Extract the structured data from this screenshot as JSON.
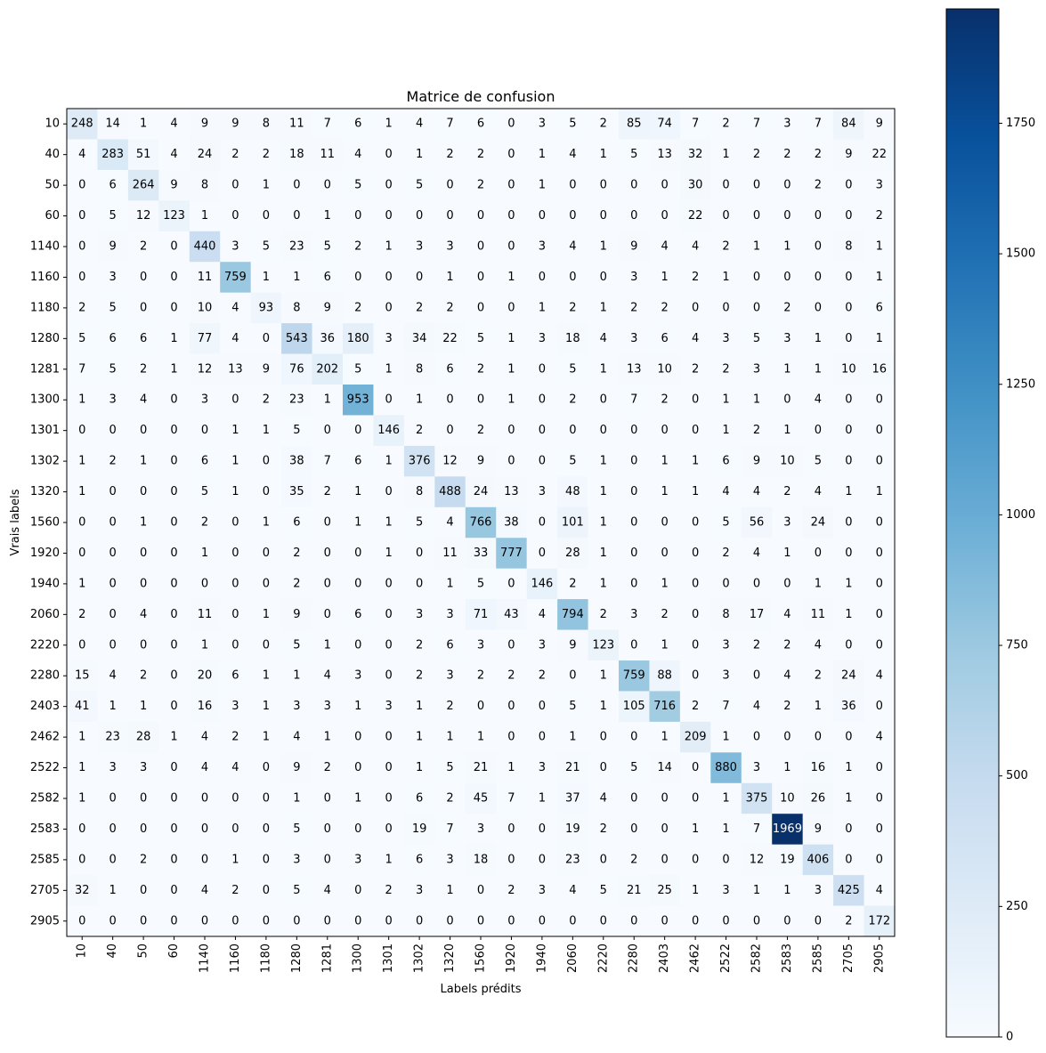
{
  "chart_data": {
    "type": "heatmap",
    "title": "Matrice de confusion",
    "xlabel": "Labels prédits",
    "ylabel": "Vrais labels",
    "labels": [
      "10",
      "40",
      "50",
      "60",
      "1140",
      "1160",
      "1180",
      "1280",
      "1281",
      "1300",
      "1301",
      "1302",
      "1320",
      "1560",
      "1920",
      "1940",
      "2060",
      "2220",
      "2280",
      "2403",
      "2462",
      "2522",
      "2582",
      "2583",
      "2585",
      "2705",
      "2905"
    ],
    "matrix": [
      [
        248,
        14,
        1,
        4,
        9,
        9,
        8,
        11,
        7,
        6,
        1,
        4,
        7,
        6,
        0,
        3,
        5,
        2,
        85,
        74,
        7,
        2,
        7,
        3,
        7,
        84,
        9
      ],
      [
        4,
        283,
        51,
        4,
        24,
        2,
        2,
        18,
        11,
        4,
        0,
        1,
        2,
        2,
        0,
        1,
        4,
        1,
        5,
        13,
        32,
        1,
        2,
        2,
        2,
        9,
        22
      ],
      [
        0,
        6,
        264,
        9,
        8,
        0,
        1,
        0,
        0,
        5,
        0,
        5,
        0,
        2,
        0,
        1,
        0,
        0,
        0,
        0,
        30,
        0,
        0,
        0,
        2,
        0,
        3
      ],
      [
        0,
        5,
        12,
        123,
        1,
        0,
        0,
        0,
        1,
        0,
        0,
        0,
        0,
        0,
        0,
        0,
        0,
        0,
        0,
        0,
        22,
        0,
        0,
        0,
        0,
        0,
        2
      ],
      [
        0,
        9,
        2,
        0,
        440,
        3,
        5,
        23,
        5,
        2,
        1,
        3,
        3,
        0,
        0,
        3,
        4,
        1,
        9,
        4,
        4,
        2,
        1,
        1,
        0,
        8,
        1
      ],
      [
        0,
        3,
        0,
        0,
        11,
        759,
        1,
        1,
        6,
        0,
        0,
        0,
        1,
        0,
        1,
        0,
        0,
        0,
        3,
        1,
        2,
        1,
        0,
        0,
        0,
        0,
        1
      ],
      [
        2,
        5,
        0,
        0,
        10,
        4,
        93,
        8,
        9,
        2,
        0,
        2,
        2,
        0,
        0,
        1,
        2,
        1,
        2,
        2,
        0,
        0,
        0,
        2,
        0,
        0,
        6
      ],
      [
        5,
        6,
        6,
        1,
        77,
        4,
        0,
        543,
        36,
        180,
        3,
        34,
        22,
        5,
        1,
        3,
        18,
        4,
        3,
        6,
        4,
        3,
        5,
        3,
        1,
        0,
        1
      ],
      [
        7,
        5,
        2,
        1,
        12,
        13,
        9,
        76,
        202,
        5,
        1,
        8,
        6,
        2,
        1,
        0,
        5,
        1,
        13,
        10,
        2,
        2,
        3,
        1,
        1,
        10,
        16
      ],
      [
        1,
        3,
        4,
        0,
        3,
        0,
        2,
        23,
        1,
        953,
        0,
        1,
        0,
        0,
        1,
        0,
        2,
        0,
        7,
        2,
        0,
        1,
        1,
        0,
        4,
        0,
        0
      ],
      [
        0,
        0,
        0,
        0,
        0,
        1,
        1,
        5,
        0,
        0,
        146,
        2,
        0,
        2,
        0,
        0,
        0,
        0,
        0,
        0,
        0,
        1,
        2,
        1,
        0,
        0,
        0
      ],
      [
        1,
        2,
        1,
        0,
        6,
        1,
        0,
        38,
        7,
        6,
        1,
        376,
        12,
        9,
        0,
        0,
        5,
        1,
        0,
        1,
        1,
        6,
        9,
        10,
        5,
        0,
        0
      ],
      [
        1,
        0,
        0,
        0,
        5,
        1,
        0,
        35,
        2,
        1,
        0,
        8,
        488,
        24,
        13,
        3,
        48,
        1,
        0,
        1,
        1,
        4,
        4,
        2,
        4,
        1,
        1
      ],
      [
        0,
        0,
        1,
        0,
        2,
        0,
        1,
        6,
        0,
        1,
        1,
        5,
        4,
        766,
        38,
        0,
        101,
        1,
        0,
        0,
        0,
        5,
        56,
        3,
        24,
        0,
        0
      ],
      [
        0,
        0,
        0,
        0,
        1,
        0,
        0,
        2,
        0,
        0,
        1,
        0,
        11,
        33,
        777,
        0,
        28,
        1,
        0,
        0,
        0,
        2,
        4,
        1,
        0,
        0,
        0
      ],
      [
        1,
        0,
        0,
        0,
        0,
        0,
        0,
        2,
        0,
        0,
        0,
        0,
        1,
        5,
        0,
        146,
        2,
        1,
        0,
        1,
        0,
        0,
        0,
        0,
        1,
        1,
        0
      ],
      [
        2,
        0,
        4,
        0,
        11,
        0,
        1,
        9,
        0,
        6,
        0,
        3,
        3,
        71,
        43,
        4,
        794,
        2,
        3,
        2,
        0,
        8,
        17,
        4,
        11,
        1,
        0
      ],
      [
        0,
        0,
        0,
        0,
        1,
        0,
        0,
        5,
        1,
        0,
        0,
        2,
        6,
        3,
        0,
        3,
        9,
        123,
        0,
        1,
        0,
        3,
        2,
        2,
        4,
        0,
        0
      ],
      [
        15,
        4,
        2,
        0,
        20,
        6,
        1,
        1,
        4,
        3,
        0,
        2,
        3,
        2,
        2,
        2,
        0,
        1,
        759,
        88,
        0,
        3,
        0,
        4,
        2,
        24,
        4
      ],
      [
        41,
        1,
        1,
        0,
        16,
        3,
        1,
        3,
        3,
        1,
        3,
        1,
        2,
        0,
        0,
        0,
        5,
        1,
        105,
        716,
        2,
        7,
        4,
        2,
        1,
        36,
        0
      ],
      [
        1,
        23,
        28,
        1,
        4,
        2,
        1,
        4,
        1,
        0,
        0,
        1,
        1,
        1,
        0,
        0,
        1,
        0,
        0,
        1,
        209,
        1,
        0,
        0,
        0,
        0,
        4
      ],
      [
        1,
        3,
        3,
        0,
        4,
        4,
        0,
        9,
        2,
        0,
        0,
        1,
        5,
        21,
        1,
        3,
        21,
        0,
        5,
        14,
        0,
        880,
        3,
        1,
        16,
        1,
        0
      ],
      [
        1,
        0,
        0,
        0,
        0,
        0,
        0,
        1,
        0,
        1,
        0,
        6,
        2,
        45,
        7,
        1,
        37,
        4,
        0,
        0,
        0,
        1,
        375,
        10,
        26,
        1,
        0
      ],
      [
        0,
        0,
        0,
        0,
        0,
        0,
        0,
        5,
        0,
        0,
        0,
        19,
        7,
        3,
        0,
        0,
        19,
        2,
        0,
        0,
        1,
        1,
        7,
        1969,
        9,
        0,
        0
      ],
      [
        0,
        0,
        2,
        0,
        0,
        1,
        0,
        3,
        0,
        3,
        1,
        6,
        3,
        18,
        0,
        0,
        23,
        0,
        2,
        0,
        0,
        0,
        12,
        19,
        406,
        0,
        0
      ],
      [
        32,
        1,
        0,
        0,
        4,
        2,
        0,
        5,
        4,
        0,
        2,
        3,
        1,
        0,
        2,
        3,
        4,
        5,
        21,
        25,
        1,
        3,
        1,
        1,
        3,
        425,
        4
      ],
      [
        0,
        0,
        0,
        0,
        0,
        0,
        0,
        0,
        0,
        0,
        0,
        0,
        0,
        0,
        0,
        0,
        0,
        0,
        0,
        0,
        0,
        0,
        0,
        0,
        0,
        2,
        172
      ]
    ],
    "colorbar": {
      "colormap": "Blues",
      "min": 0,
      "max": 1969,
      "ticks": [
        0,
        250,
        500,
        750,
        1000,
        1250,
        1500,
        1750
      ]
    }
  }
}
